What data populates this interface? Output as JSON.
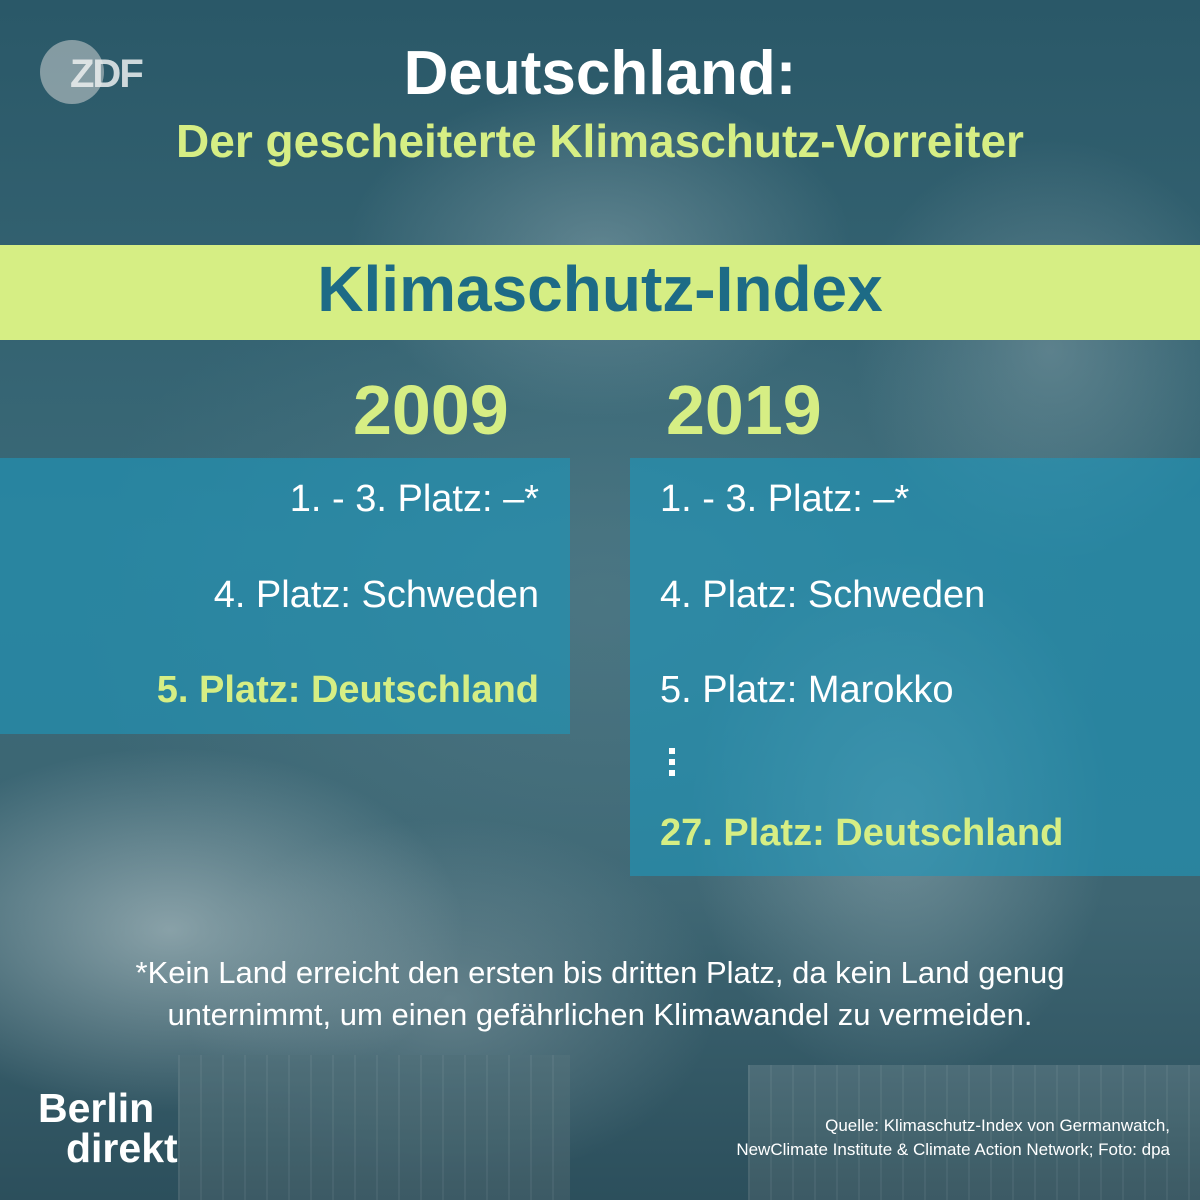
{
  "brand": {
    "broadcaster_logo": "ZDF",
    "show_logo_line1": "Berlin",
    "show_logo_line2": "direkt"
  },
  "header": {
    "title": "Deutschland:",
    "subtitle": "Der gescheiterte Klimaschutz-Vorreiter"
  },
  "banner": {
    "label": "Klimaschutz-Index"
  },
  "columns": [
    {
      "year": "2009",
      "rows": [
        {
          "text": "1. - 3. Platz: –*",
          "highlight": false
        },
        {
          "text": "4. Platz: Schweden",
          "highlight": false
        },
        {
          "text": "5. Platz: Deutschland",
          "highlight": true
        }
      ]
    },
    {
      "year": "2019",
      "rows": [
        {
          "text": "1. - 3. Platz: –*",
          "highlight": false
        },
        {
          "text": "4. Platz: Schweden",
          "highlight": false
        },
        {
          "text": "5. Platz: Marokko",
          "highlight": false
        },
        {
          "text": "27. Platz: Deutschland",
          "highlight": true
        }
      ]
    }
  ],
  "footnote": {
    "line1": "*Kein Land erreicht den ersten bis dritten Platz, da kein Land genug",
    "line2": "unternimmt, um einen gefährlichen Klimawandel zu vermeiden."
  },
  "source": {
    "line1": "Quelle: Klimaschutz-Index von Germanwatch,",
    "line2": "NewClimate Institute & Climate Action Network; Foto: dpa"
  },
  "colors": {
    "accent_green": "#d6ee84",
    "banner_text_blue": "#1d6b86",
    "panel_blue": "#1e96b9"
  }
}
